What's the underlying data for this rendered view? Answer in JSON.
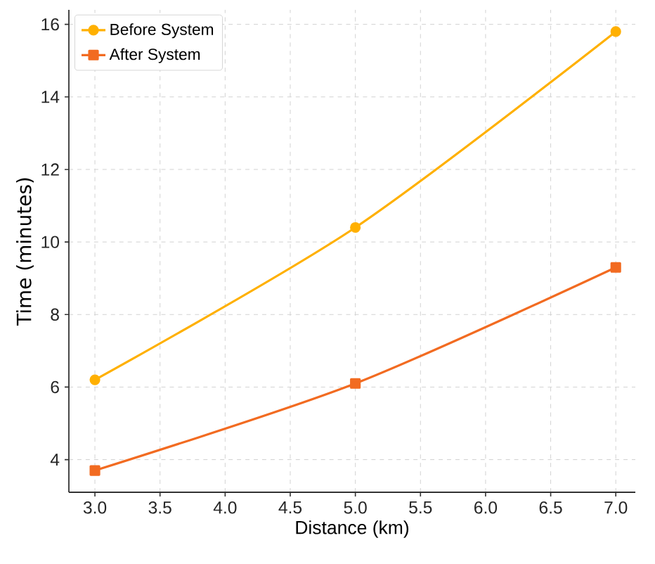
{
  "chart_data": {
    "type": "line",
    "xlabel": "Distance (km)",
    "ylabel": "Time (minutes)",
    "x": [
      3.0,
      5.0,
      7.0
    ],
    "series": [
      {
        "name": "Before System",
        "color": "#ffb000",
        "values": [
          6.2,
          10.4,
          15.8
        ],
        "marker": "circle"
      },
      {
        "name": "After System",
        "color": "#f26b21",
        "values": [
          3.7,
          6.1,
          9.3
        ],
        "marker": "square"
      }
    ],
    "xlim": [
      2.8,
      7.15
    ],
    "ylim": [
      3.1,
      16.4
    ],
    "xticks": [
      {
        "value": 3.0,
        "label": "3.0"
      },
      {
        "value": 3.5,
        "label": "3.5"
      },
      {
        "value": 4.0,
        "label": "4.0"
      },
      {
        "value": 4.5,
        "label": "4.5"
      },
      {
        "value": 5.0,
        "label": "5.0"
      },
      {
        "value": 5.5,
        "label": "5.5"
      },
      {
        "value": 6.0,
        "label": "6.0"
      },
      {
        "value": 6.5,
        "label": "6.5"
      },
      {
        "value": 7.0,
        "label": "7.0"
      }
    ],
    "yticks": [
      4,
      6,
      8,
      10,
      12,
      14,
      16
    ],
    "grid": true,
    "legend": "top left",
    "line_style": "solid"
  }
}
